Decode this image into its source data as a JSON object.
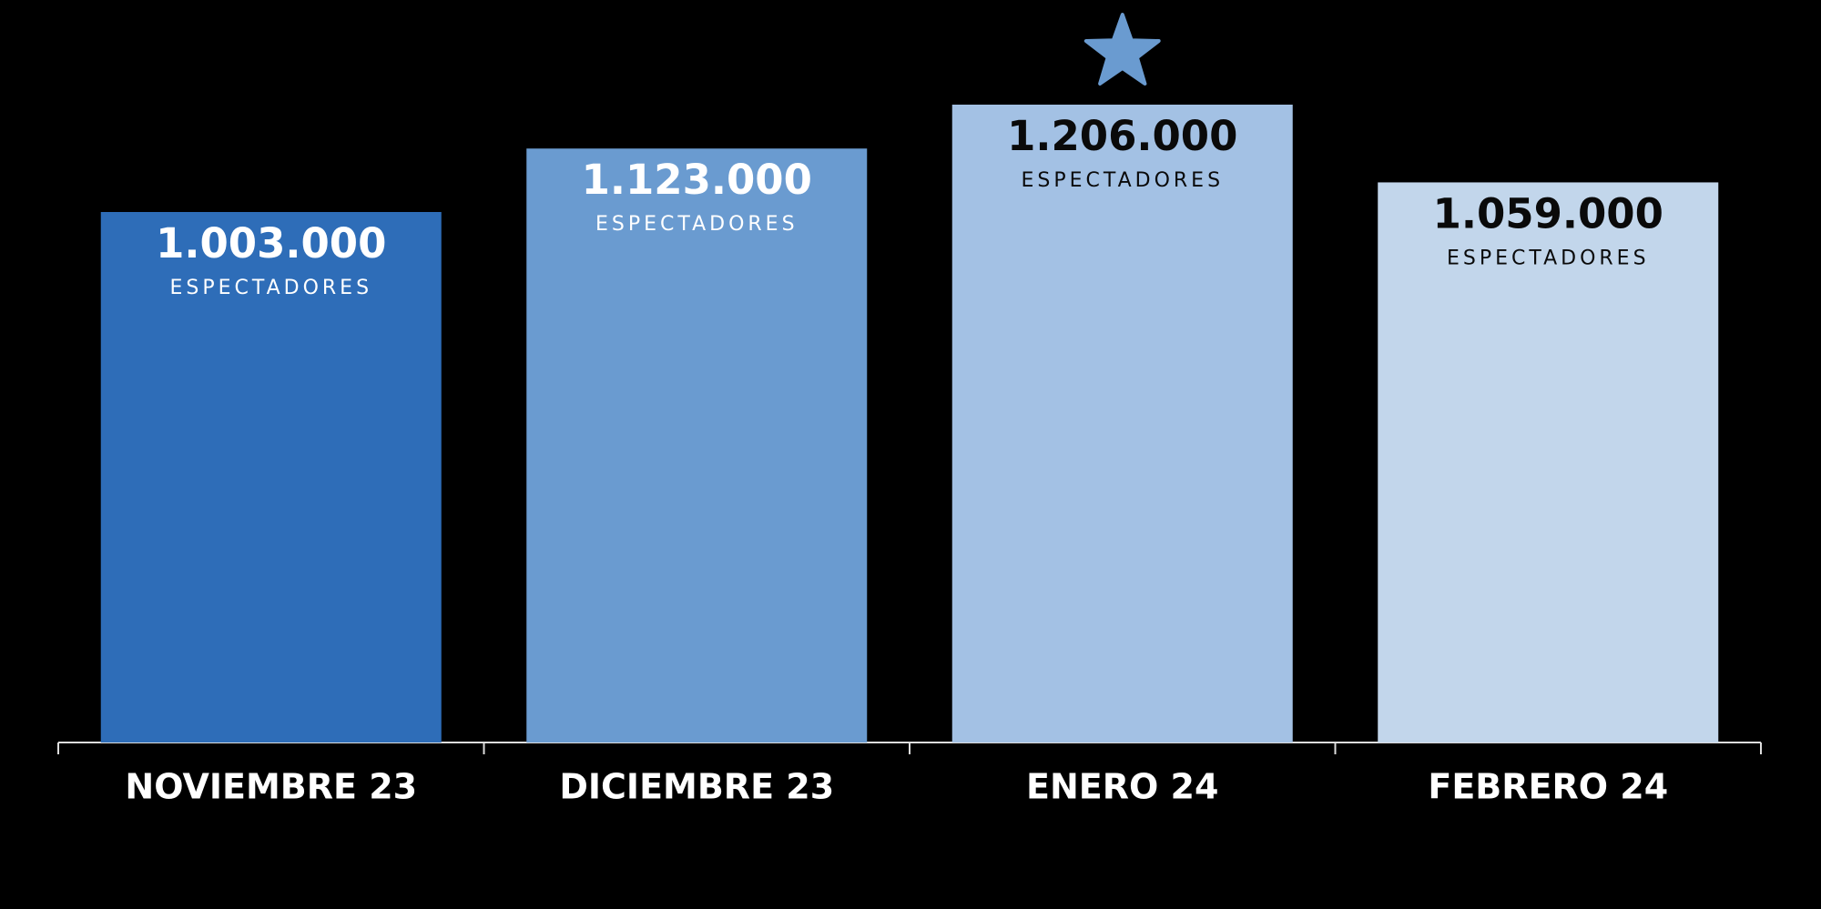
{
  "chart_data": {
    "type": "bar",
    "categories": [
      "NOVIEMBRE 23",
      "DICIEMBRE 23",
      "ENERO 24",
      "FEBRERO 24"
    ],
    "values": [
      1003000,
      1123000,
      1206000,
      1059000
    ],
    "value_labels": [
      "1.003.000",
      "1.123.000",
      "1.206.000",
      "1.059.000"
    ],
    "unit_label": "ESPECTADORES",
    "colors": [
      "#2e6db8",
      "#6a9bd0",
      "#a3c1e4",
      "#c2d6eb"
    ],
    "value_label_colors": [
      "#ffffff",
      "#ffffff",
      "#0a0a0a",
      "#0a0a0a"
    ]
  }
}
